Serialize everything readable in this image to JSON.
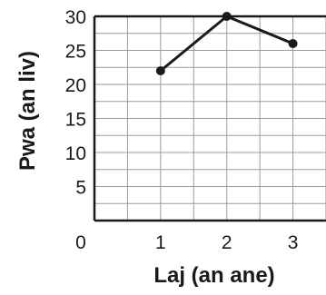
{
  "chart_data": {
    "type": "line",
    "x": [
      1,
      2,
      3
    ],
    "values": [
      22,
      30,
      26
    ],
    "xlabel": "Laj (an ane)",
    "ylabel": "Pwa (an liv)",
    "xlim": [
      0,
      3.5
    ],
    "ylim": [
      0,
      30
    ],
    "x_ticks": [
      "1",
      "2",
      "3"
    ],
    "y_ticks": [
      "5",
      "10",
      "15",
      "20",
      "25",
      "30"
    ],
    "origin_label": "0",
    "grid": true,
    "line_color": "#1a1a1a",
    "grid_color": "#9a9a9a"
  }
}
